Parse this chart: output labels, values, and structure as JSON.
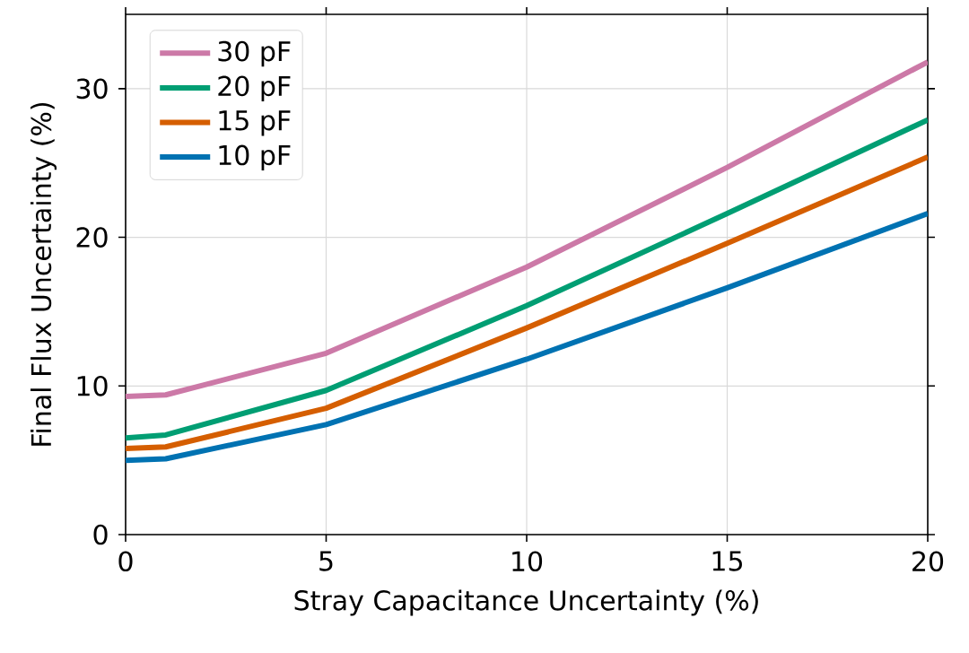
{
  "chart_data": {
    "type": "line",
    "xlabel": "Stray Capacitance Uncertainty (%)",
    "ylabel": "Final Flux Uncertainty (%)",
    "x": [
      0,
      1,
      5,
      10,
      15,
      20
    ],
    "series": [
      {
        "name": "30 pF",
        "color": "#cc79a7",
        "values": [
          9.3,
          9.4,
          12.2,
          18.0,
          24.7,
          31.8
        ]
      },
      {
        "name": "20 pF",
        "color": "#009e73",
        "values": [
          6.5,
          6.7,
          9.7,
          15.4,
          21.6,
          27.9
        ]
      },
      {
        "name": "15 pF",
        "color": "#d55e00",
        "values": [
          5.8,
          5.9,
          8.5,
          13.9,
          19.6,
          25.4
        ]
      },
      {
        "name": "10 pF",
        "color": "#0072b2",
        "values": [
          5.0,
          5.1,
          7.4,
          11.8,
          16.6,
          21.6
        ]
      }
    ],
    "xlim": [
      0,
      20
    ],
    "ylim": [
      0,
      35
    ],
    "xticks": [
      0,
      5,
      10,
      15,
      20
    ],
    "yticks": [
      0,
      10,
      20,
      30
    ],
    "grid": true,
    "legend": "top left",
    "marker": "none",
    "line_style": "solid"
  }
}
